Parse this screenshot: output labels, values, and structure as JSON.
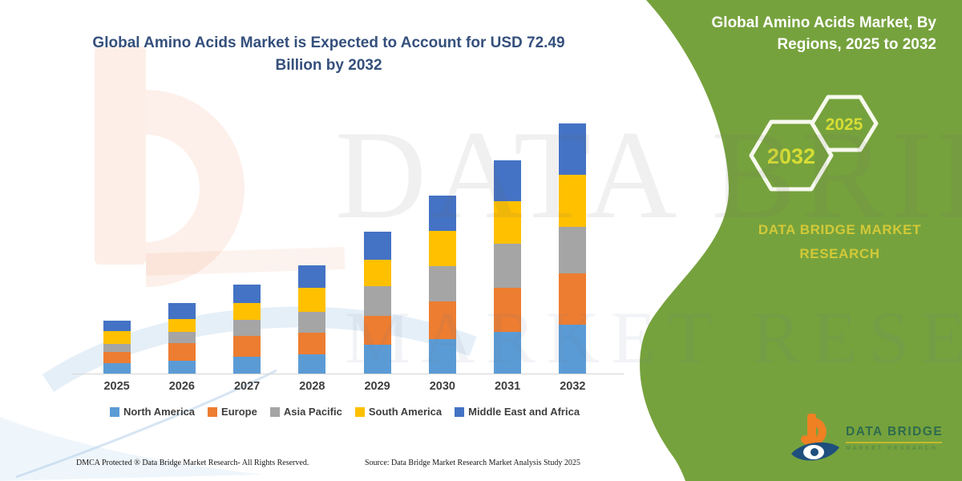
{
  "chart_panel": {
    "title": "Global Amino Acids Market is Expected to Account for USD 72.49 Billion by 2032"
  },
  "chart_data": {
    "type": "bar",
    "stacked": true,
    "title": "Global Amino Acids Market is Expected to Account for USD 72.49 Billion by 2032",
    "unit": "USD Billion",
    "categories": [
      "2025",
      "2026",
      "2027",
      "2028",
      "2029",
      "2030",
      "2031",
      "2032"
    ],
    "series": [
      {
        "name": "North America",
        "color": "#5b9bd5",
        "values": [
          3.1,
          3.7,
          5.0,
          5.7,
          8.3,
          10.1,
          12.0,
          14.3
        ]
      },
      {
        "name": "Europe",
        "color": "#ed7d31",
        "values": [
          3.1,
          5.1,
          6.0,
          6.2,
          8.4,
          10.9,
          12.8,
          14.7
        ]
      },
      {
        "name": "Asia Pacific",
        "color": "#a5a5a5",
        "values": [
          2.4,
          3.3,
          4.5,
          6.0,
          8.7,
          10.1,
          12.8,
          13.6
        ]
      },
      {
        "name": "South America",
        "color": "#ffc000",
        "values": [
          3.8,
          3.7,
          5.0,
          7.0,
          7.6,
          10.3,
          12.4,
          15.1
        ]
      },
      {
        "name": "Middle East and Africa",
        "color": "#4472c4",
        "values": [
          2.9,
          4.8,
          5.4,
          6.4,
          8.1,
          10.2,
          12.0,
          14.8
        ]
      }
    ],
    "totals": [
      15.3,
      20.6,
      25.9,
      31.3,
      41.1,
      51.6,
      62.0,
      72.49
    ],
    "ylim": [
      0,
      80
    ],
    "grid": false,
    "y_axis_visible": false,
    "legend_position": "bottom"
  },
  "green_panel": {
    "background": "#76a23d",
    "title": "Global Amino Acids Market, By Regions, 2025 to 2032",
    "hexagons": [
      {
        "label": "2032"
      },
      {
        "label": "2025"
      }
    ],
    "brand_caps": "DATA BRIDGE MARKET RESEARCH"
  },
  "logo": {
    "wordmark": "DATA BRIDGE",
    "tagline": "MARKET RESEARCH"
  },
  "watermark": {
    "line1": "DATA BRIDGE",
    "line2": "MARKET RESEARCH"
  },
  "footer": {
    "dmca": "DMCA Protected ® Data Bridge Market Research-  All Rights Reserved.",
    "source": "Source: Data Bridge Market Research  Market Analysis Study 2025"
  }
}
